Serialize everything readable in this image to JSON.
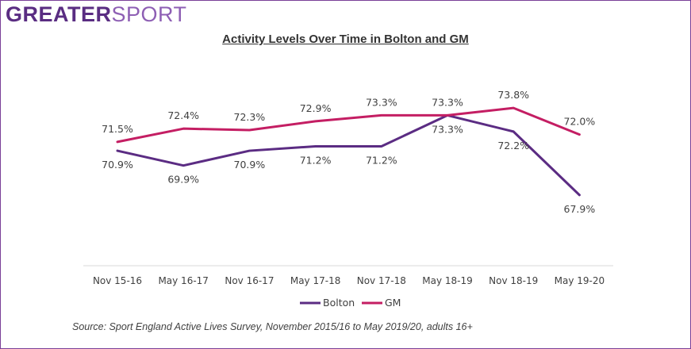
{
  "logo": {
    "part1": "GREATER",
    "part2": "SPORT"
  },
  "source": "Source: Sport England Active Lives Survey, November 2015/16 to May 2019/20, adults 16+",
  "colors": {
    "bolton": "#5b2c83",
    "gm": "#c41e63",
    "axis": "#d9d9d9",
    "text": "#404040",
    "border": "#7a3f98"
  },
  "chart_data": {
    "type": "line",
    "title": "Activity Levels Over Time in Bolton and GM",
    "categories": [
      "Nov 15-16",
      "May 16-17",
      "Nov 16-17",
      "May 17-18",
      "Nov 17-18",
      "May 18-19",
      "Nov 18-19",
      "May 19-20"
    ],
    "series": [
      {
        "name": "Bolton",
        "values": [
          70.9,
          69.9,
          70.9,
          71.2,
          71.2,
          73.3,
          72.2,
          67.9
        ],
        "labels": [
          "70.9%",
          "69.9%",
          "70.9%",
          "71.2%",
          "71.2%",
          "73.3%",
          "72.2%",
          "67.9%"
        ]
      },
      {
        "name": "GM",
        "values": [
          71.5,
          72.4,
          72.3,
          72.9,
          73.3,
          73.3,
          73.8,
          72.0
        ],
        "labels": [
          "71.5%",
          "72.4%",
          "72.3%",
          "72.9%",
          "73.3%",
          "73.3%",
          "73.8%",
          "72.0%"
        ]
      }
    ],
    "grid": false,
    "legend": "bottom"
  }
}
